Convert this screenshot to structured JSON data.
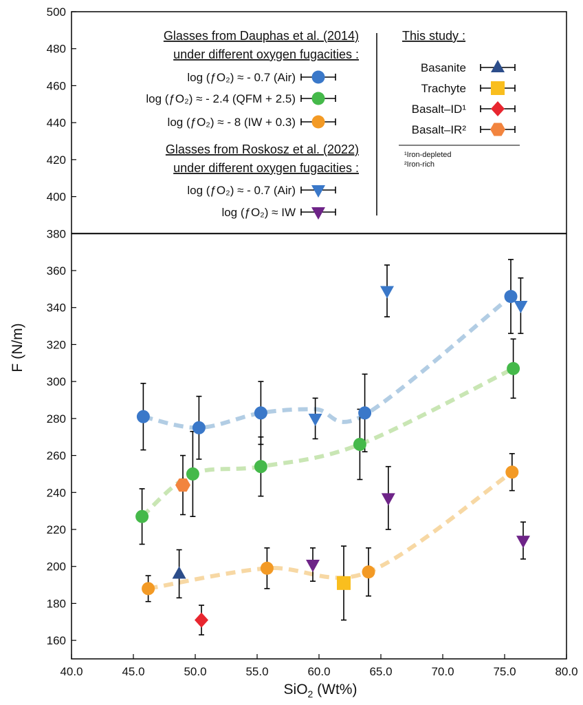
{
  "chart_data": {
    "type": "scatter",
    "xlabel": "SiO2 (Wt%)",
    "ylabel": "F (N/m)",
    "xlim": [
      40,
      80
    ],
    "ylim": [
      150,
      500
    ],
    "x_ticks": [
      "40.0",
      "45.0",
      "50.0",
      "55.0",
      "60.0",
      "65.0",
      "70.0",
      "75.0",
      "80.0"
    ],
    "y_ticks": [
      160,
      180,
      200,
      220,
      240,
      260,
      280,
      300,
      320,
      340,
      360,
      380,
      400,
      420,
      440,
      460,
      480,
      500
    ],
    "legend_divider_y": 380,
    "legend": {
      "dauphas_title_line1": "Glasses from Dauphas et al. (2014)",
      "dauphas_title_line2": "under different oxygen fugacities :",
      "roskosz_title_line1": "Glasses from Roskosz et al. (2022)",
      "roskosz_title_line2": "under different oxygen fugacities :",
      "this_study_title": "This study :",
      "footnote1": "¹Iron-depleted",
      "footnote2": "²Iron-rich"
    },
    "series": [
      {
        "name": "log (ƒO₂) ≈ - 0.7 (Air)",
        "marker": "circle",
        "color": "#3a78c9",
        "points": [
          {
            "x": 45.8,
            "y": 281,
            "err": 18
          },
          {
            "x": 50.3,
            "y": 275,
            "err": 17
          },
          {
            "x": 55.3,
            "y": 283,
            "err": 17
          },
          {
            "x": 63.7,
            "y": 283,
            "err": 21
          },
          {
            "x": 75.5,
            "y": 346,
            "err": 20
          }
        ]
      },
      {
        "name": "log (ƒO₂) ≈ - 2.4 (QFM + 2.5)",
        "marker": "circle",
        "color": "#45b94a",
        "points": [
          {
            "x": 45.7,
            "y": 227,
            "err": 15
          },
          {
            "x": 49.8,
            "y": 250,
            "err": 23
          },
          {
            "x": 55.3,
            "y": 254,
            "err": 16
          },
          {
            "x": 63.3,
            "y": 266,
            "err": 19
          },
          {
            "x": 75.7,
            "y": 307,
            "err": 16
          }
        ]
      },
      {
        "name": "log (ƒO₂) ≈ - 8 (IW + 0.3)",
        "marker": "circle",
        "color": "#f39a25",
        "points": [
          {
            "x": 46.2,
            "y": 188,
            "err": 7
          },
          {
            "x": 55.8,
            "y": 199,
            "err": 11
          },
          {
            "x": 64.0,
            "y": 197,
            "err": 13
          },
          {
            "x": 75.6,
            "y": 251,
            "err": 10
          }
        ]
      },
      {
        "name": "log (ƒO₂) ≈ - 0.7 (Air)",
        "marker": "triangle-down",
        "color": "#3a78c9",
        "points": [
          {
            "x": 59.7,
            "y": 280,
            "err": 11
          },
          {
            "x": 65.5,
            "y": 349,
            "err": 14
          },
          {
            "x": 76.3,
            "y": 341,
            "err": 15
          }
        ]
      },
      {
        "name": "log (ƒO₂) ≈  IW",
        "marker": "triangle-down",
        "color": "#6e2488",
        "points": [
          {
            "x": 59.5,
            "y": 201,
            "err": 9
          },
          {
            "x": 65.6,
            "y": 237,
            "err": 17
          },
          {
            "x": 76.5,
            "y": 214,
            "err": 10
          }
        ]
      },
      {
        "name": "Basanite",
        "marker": "triangle-up",
        "color": "#2c4d8a",
        "points": [
          {
            "x": 48.7,
            "y": 196,
            "err": 13
          }
        ]
      },
      {
        "name": "Trachyte",
        "marker": "square",
        "color": "#f9be1e",
        "points": [
          {
            "x": 62.0,
            "y": 191,
            "err": 20
          }
        ]
      },
      {
        "name": "Basalt–ID¹",
        "marker": "diamond",
        "color": "#e8262f",
        "points": [
          {
            "x": 50.5,
            "y": 171,
            "err": 8
          }
        ]
      },
      {
        "name": "Basalt–IR²",
        "marker": "hexagon",
        "color": "#f2843e",
        "points": [
          {
            "x": 49.0,
            "y": 244,
            "err": 16
          }
        ]
      }
    ],
    "trend_lines": [
      {
        "color": "#b2cde4",
        "points": [
          [
            45.8,
            281
          ],
          [
            50.3,
            275
          ],
          [
            55.3,
            283
          ],
          [
            59.7,
            285
          ],
          [
            63.7,
            282
          ],
          [
            75.5,
            346
          ]
        ]
      },
      {
        "color": "#c9e6b4",
        "points": [
          [
            45.7,
            227
          ],
          [
            49.8,
            250
          ],
          [
            55.3,
            254
          ],
          [
            63.3,
            266
          ],
          [
            75.7,
            307
          ]
        ]
      },
      {
        "color": "#f7d8a4",
        "points": [
          [
            46.2,
            188
          ],
          [
            55.8,
            199
          ],
          [
            64.0,
            197
          ],
          [
            75.6,
            251
          ]
        ]
      }
    ]
  }
}
